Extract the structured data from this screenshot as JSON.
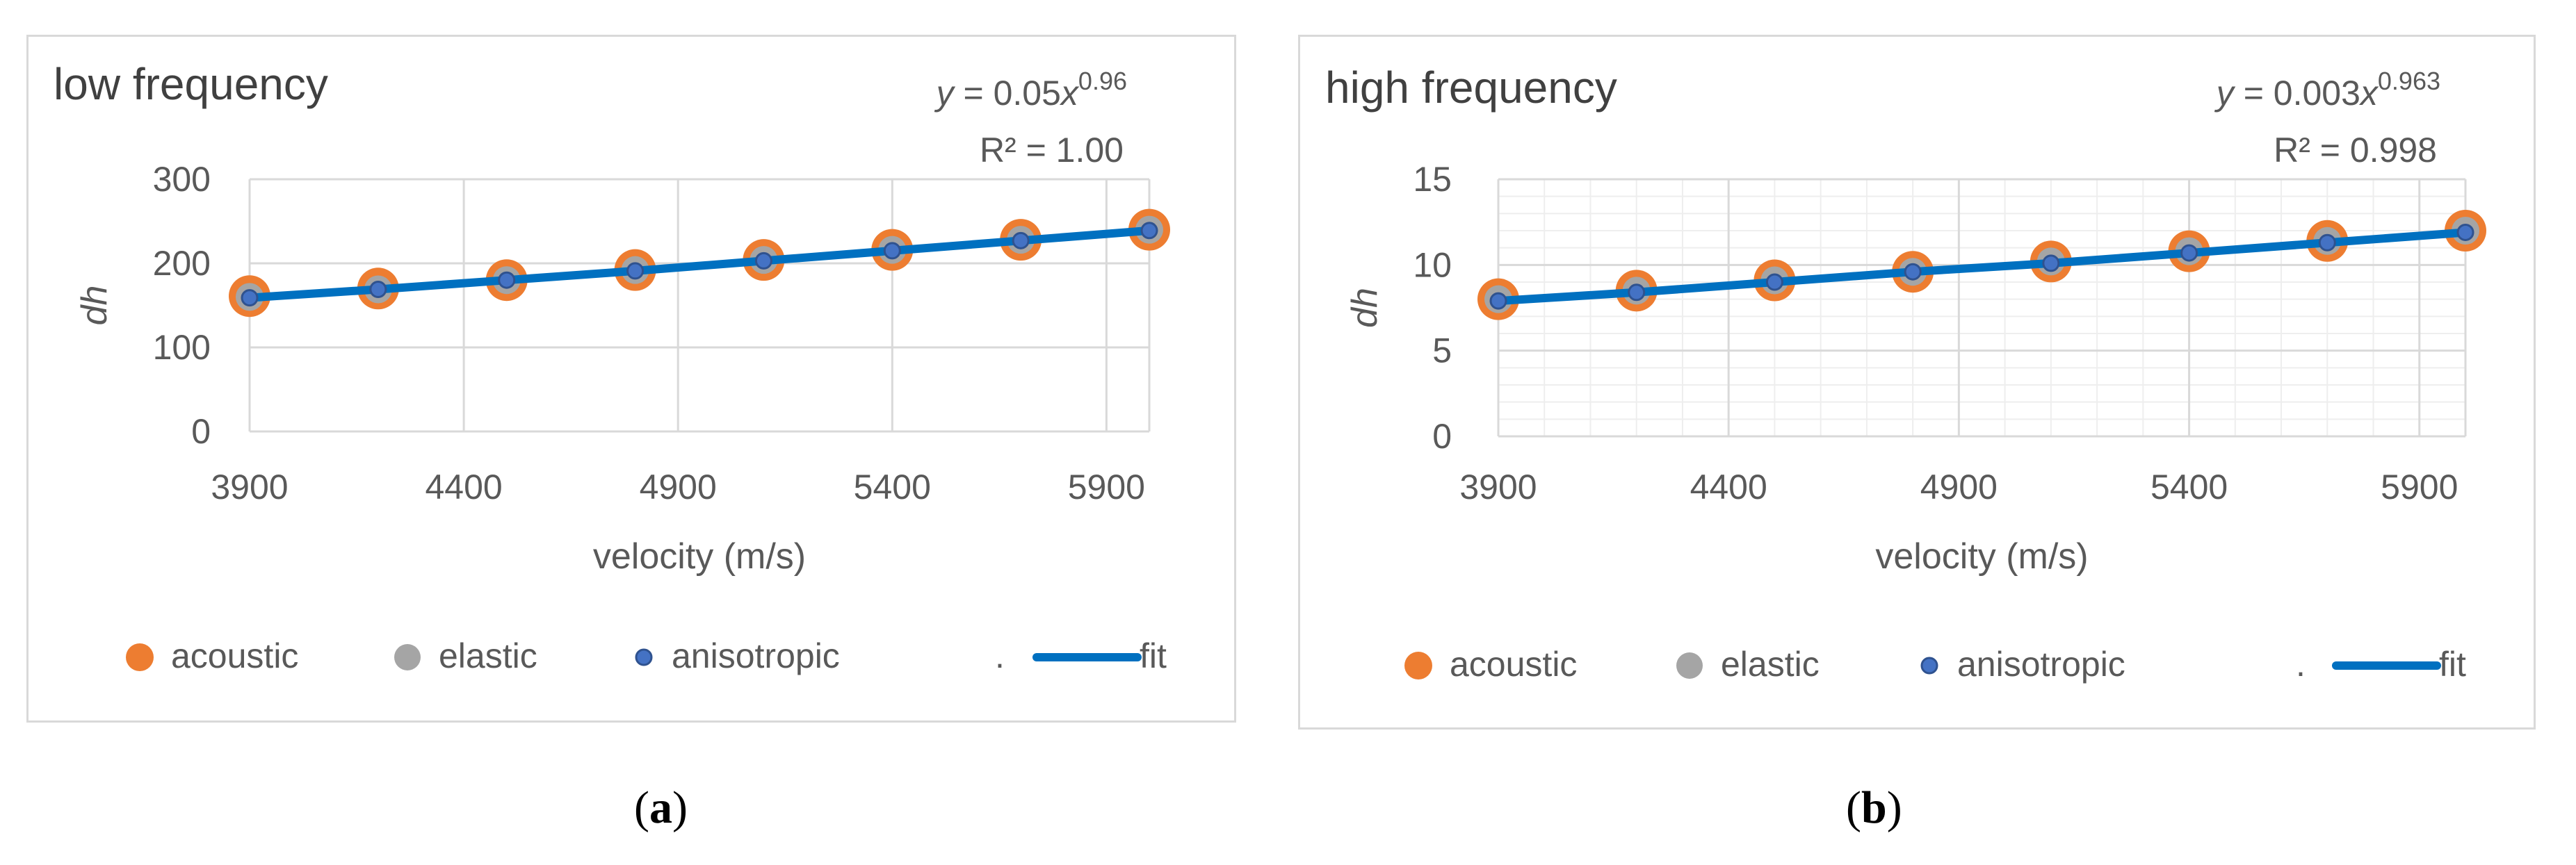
{
  "chart_data": [
    {
      "type": "scatter",
      "title": "low frequency",
      "equation": {
        "y": "y",
        "eq": " = 0.05",
        "x": "x",
        "exp": "0.96"
      },
      "r2": "R² = 1.00",
      "xlabel": "velocity (m/s)",
      "ylabel": "dh",
      "xlim": [
        3900,
        6000
      ],
      "ylim": [
        0,
        300
      ],
      "xticks": [
        "3900",
        "4400",
        "4900",
        "5400",
        "5900"
      ],
      "xtick_values": [
        3900,
        4400,
        4900,
        5400,
        5900
      ],
      "yticks": [
        "0",
        "100",
        "200",
        "300"
      ],
      "ytick_values": [
        0,
        100,
        200,
        300
      ],
      "x": [
        3900,
        4200,
        4500,
        4800,
        5100,
        5400,
        5700,
        6000
      ],
      "series": [
        {
          "name": "acoustic",
          "values": [
            161,
            170,
            180,
            192,
            204,
            216,
            228,
            240
          ]
        },
        {
          "name": "elastic",
          "values": [
            160,
            169,
            180,
            192,
            204,
            216,
            228,
            240
          ]
        },
        {
          "name": "anisotropic",
          "values": [
            159,
            169,
            180,
            191,
            203,
            215,
            227,
            239
          ]
        },
        {
          "name": "fit",
          "values": [
            159,
            169,
            180,
            191,
            203,
            215,
            227,
            239
          ]
        }
      ],
      "grid": {
        "x_major": true,
        "y_major": true,
        "y_minor": false
      },
      "legend": {
        "position": "bottom",
        "separator": "."
      },
      "colors": {
        "acoustic": "#ed7d31",
        "elastic": "#a5a5a5",
        "anisotropic": "#4472c4",
        "fit": "#0070c0"
      }
    },
    {
      "type": "scatter",
      "title": "high frequency",
      "equation": {
        "y": "y",
        "eq": " = 0.003",
        "x": "x",
        "exp": "0.963"
      },
      "r2": "R² = 0.998",
      "xlabel": "velocity (m/s)",
      "ylabel": "dh",
      "xlim": [
        3900,
        6000
      ],
      "ylim": [
        0,
        15
      ],
      "xticks": [
        "3900",
        "4400",
        "4900",
        "5400",
        "5900"
      ],
      "xtick_values": [
        3900,
        4400,
        4900,
        5400,
        5900
      ],
      "yticks": [
        "0",
        "5",
        "10",
        "15"
      ],
      "ytick_values": [
        0,
        5,
        10,
        15
      ],
      "x": [
        3900,
        4200,
        4500,
        4800,
        5100,
        5400,
        5700,
        6000
      ],
      "series": [
        {
          "name": "acoustic",
          "values": [
            8.0,
            8.5,
            9.1,
            9.6,
            10.2,
            10.8,
            11.4,
            12.0
          ]
        },
        {
          "name": "elastic",
          "values": [
            8.0,
            8.5,
            9.1,
            9.6,
            10.2,
            10.8,
            11.4,
            12.0
          ]
        },
        {
          "name": "anisotropic",
          "values": [
            7.9,
            8.4,
            9.0,
            9.6,
            10.1,
            10.7,
            11.3,
            11.9
          ]
        },
        {
          "name": "fit",
          "values": [
            7.9,
            8.4,
            9.0,
            9.6,
            10.1,
            10.7,
            11.3,
            11.9
          ]
        }
      ],
      "grid": {
        "x_major": true,
        "y_major": true,
        "y_minor": true
      },
      "legend": {
        "position": "bottom",
        "separator": "."
      },
      "colors": {
        "acoustic": "#ed7d31",
        "elastic": "#a5a5a5",
        "anisotropic": "#4472c4",
        "fit": "#0070c0"
      }
    }
  ],
  "panel_labels": [
    {
      "open": "(",
      "letter": "a",
      "close": ")"
    },
    {
      "open": "(",
      "letter": "b",
      "close": ")"
    }
  ]
}
